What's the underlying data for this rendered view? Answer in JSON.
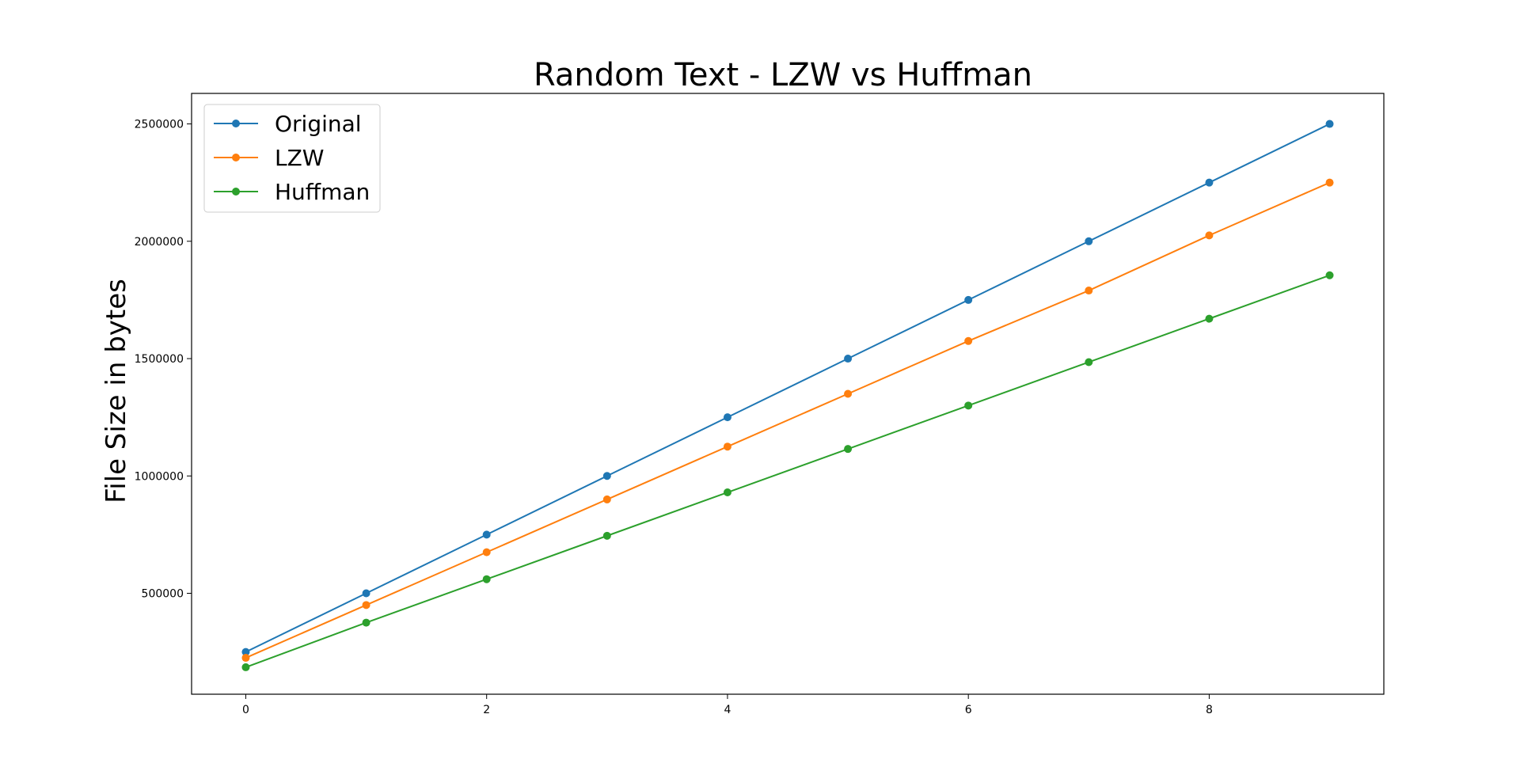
{
  "chart_data": {
    "type": "line",
    "title": "Random Text - LZW vs Huffman",
    "xlabel": "",
    "ylabel": "File Size in bytes",
    "x": [
      0,
      1,
      2,
      3,
      4,
      5,
      6,
      7,
      8,
      9
    ],
    "xticks": [
      0,
      2,
      4,
      6,
      8
    ],
    "yticks": [
      500000,
      1000000,
      1500000,
      2000000,
      2500000
    ],
    "xlim": [
      -0.45,
      9.45
    ],
    "ylim": [
      70000,
      2630000
    ],
    "grid": false,
    "legend_position": "upper-left",
    "series": [
      {
        "name": "Original",
        "color": "#1f77b4",
        "values": [
          250000,
          500000,
          750000,
          1000000,
          1250000,
          1500000,
          1750000,
          2000000,
          2250000,
          2500000
        ]
      },
      {
        "name": "LZW",
        "color": "#ff7f0e",
        "values": [
          225000,
          450000,
          675000,
          900000,
          1125000,
          1350000,
          1575000,
          1790000,
          2025000,
          2250000
        ]
      },
      {
        "name": "Huffman",
        "color": "#2ca02c",
        "values": [
          185000,
          375000,
          560000,
          745000,
          930000,
          1115000,
          1300000,
          1485000,
          1670000,
          1855000
        ]
      }
    ]
  }
}
